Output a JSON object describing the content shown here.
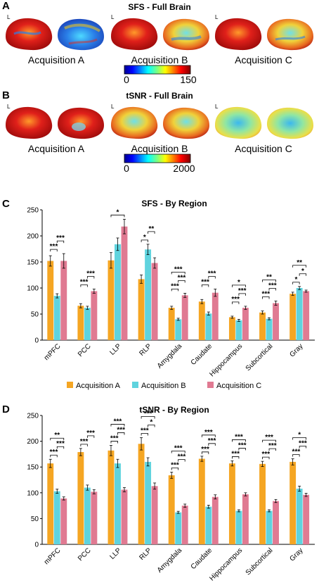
{
  "panels": {
    "A": {
      "label": "A",
      "title": "SFS - Full Brain",
      "acquisitions": [
        "Acquisition A",
        "Acquisition B",
        "Acquisition C"
      ],
      "colorbar": {
        "min": "0",
        "max": "150"
      }
    },
    "B": {
      "label": "B",
      "title": "tSNR - Full Brain",
      "acquisitions": [
        "Acquisition A",
        "Acquisition B",
        "Acquisition C"
      ],
      "colorbar": {
        "min": "0",
        "max": "2000"
      }
    }
  },
  "hemisphere_marker": "L",
  "colors": {
    "acqA": "#f5a623",
    "acqB": "#5fd3de",
    "acqC": "#e07a92"
  },
  "chart_data": [
    {
      "panel_label": "C",
      "type": "bar",
      "title": "SFS - By Region",
      "categories": [
        "mPFC",
        "PCC",
        "LLP",
        "RLP",
        "Amygdala",
        "Caudate",
        "Hippocampus",
        "Subcortical",
        "Gray"
      ],
      "series": [
        {
          "name": "Acquisition A",
          "values": [
            152,
            66,
            153,
            117,
            62,
            74,
            44,
            53,
            89
          ],
          "errors": [
            10,
            4,
            15,
            8,
            3,
            4,
            2,
            3,
            3
          ]
        },
        {
          "name": "Acquisition B",
          "values": [
            85,
            62,
            184,
            174,
            40,
            51,
            38,
            41,
            100
          ],
          "errors": [
            4,
            3,
            12,
            10,
            2,
            3,
            2,
            2,
            3
          ]
        },
        {
          "name": "Acquisition C",
          "values": [
            152,
            94,
            218,
            148,
            86,
            91,
            62,
            71,
            94
          ],
          "errors": [
            14,
            4,
            14,
            10,
            4,
            7,
            3,
            4,
            2
          ]
        }
      ],
      "significance": [
        {
          "category": "mPFC",
          "labels": [
            "***",
            "***"
          ]
        },
        {
          "category": "PCC",
          "labels": [
            "***",
            "***"
          ]
        },
        {
          "category": "LLP",
          "labels": [
            "*"
          ]
        },
        {
          "category": "RLP",
          "labels": [
            "*",
            "**"
          ]
        },
        {
          "category": "Amygdala",
          "labels": [
            "***",
            "***",
            "***"
          ]
        },
        {
          "category": "Caudate",
          "labels": [
            "***",
            "***"
          ]
        },
        {
          "category": "Hippocampus",
          "labels": [
            "***",
            "***",
            "*"
          ]
        },
        {
          "category": "Subcortical",
          "labels": [
            "***",
            "***",
            "**"
          ]
        },
        {
          "category": "Gray",
          "labels": [
            "*",
            "*",
            "**"
          ]
        }
      ],
      "yticks": [
        "0",
        "50",
        "100",
        "150",
        "200",
        "250"
      ],
      "ylim": [
        0,
        250
      ],
      "grid": false
    },
    {
      "panel_label": "D",
      "type": "bar",
      "title": "tSNR - By Region",
      "categories": [
        "mPFC",
        "PCC",
        "LLP",
        "RLP",
        "Amygdala",
        "Caudate",
        "Hippocampus",
        "Subcortical",
        "Gray"
      ],
      "series": [
        {
          "name": "Acquisition A",
          "values": [
            157,
            179,
            182,
            195,
            134,
            166,
            157,
            156,
            160
          ],
          "errors": [
            8,
            7,
            10,
            12,
            6,
            5,
            5,
            5,
            6
          ]
        },
        {
          "name": "Acquisition B",
          "values": [
            103,
            110,
            157,
            160,
            62,
            73,
            65,
            65,
            108
          ],
          "errors": [
            4,
            5,
            8,
            8,
            2,
            3,
            2,
            2,
            5
          ]
        },
        {
          "name": "Acquisition C",
          "values": [
            89,
            102,
            106,
            113,
            75,
            92,
            97,
            84,
            96
          ],
          "errors": [
            3,
            4,
            4,
            6,
            3,
            4,
            3,
            3,
            3
          ]
        }
      ],
      "significance": [
        {
          "category": "mPFC",
          "labels": [
            "***",
            "***",
            "**"
          ]
        },
        {
          "category": "PCC",
          "labels": [
            "***",
            "***"
          ]
        },
        {
          "category": "LLP",
          "labels": [
            "***",
            "***",
            "***"
          ]
        },
        {
          "category": "RLP",
          "labels": [
            "***",
            "*",
            "***"
          ]
        },
        {
          "category": "Amygdala",
          "labels": [
            "***",
            "***",
            "***"
          ]
        },
        {
          "category": "Caudate",
          "labels": [
            "***",
            "***",
            "***"
          ]
        },
        {
          "category": "Hippocampus",
          "labels": [
            "***",
            "***",
            "***"
          ]
        },
        {
          "category": "Subcortical",
          "labels": [
            "***",
            "***",
            "***"
          ]
        },
        {
          "category": "Gray",
          "labels": [
            "***",
            "***",
            "*"
          ]
        }
      ],
      "yticks": [
        "0",
        "50",
        "100",
        "150",
        "200",
        "250"
      ],
      "ylim": [
        0,
        250
      ],
      "grid": false
    }
  ],
  "legend": {
    "placement": "between-charts",
    "items": [
      "Acquisition A",
      "Acquisition B",
      "Acquisition C"
    ]
  }
}
